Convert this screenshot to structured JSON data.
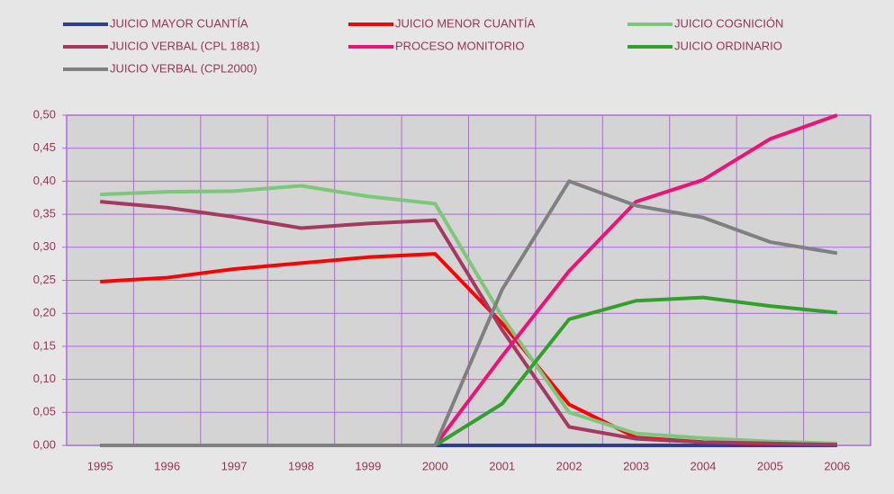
{
  "chart_data": {
    "type": "line",
    "categories": [
      "1995",
      "1996",
      "1997",
      "1998",
      "1999",
      "2000",
      "2001",
      "2002",
      "2003",
      "2004",
      "2005",
      "2006"
    ],
    "series": [
      {
        "name": "JUICIO MAYOR CUANTÍA",
        "color": "#2e3d99",
        "values": [
          0,
          0,
          0,
          0,
          0,
          0,
          0,
          0,
          0,
          0,
          0,
          0
        ]
      },
      {
        "name": "JUICIO MENOR CUANTÍA",
        "color": "#ff0000",
        "values": [
          0.248,
          0.254,
          0.267,
          0.276,
          0.285,
          0.29,
          0.185,
          0.062,
          0.012,
          0.005,
          0.002,
          0.001
        ]
      },
      {
        "name": "JUICIO COGNICIÓN",
        "color": "#7dc77a",
        "values": [
          0.38,
          0.384,
          0.385,
          0.393,
          0.377,
          0.366,
          0.195,
          0.05,
          0.018,
          0.011,
          0.006,
          0.003
        ]
      },
      {
        "name": "JUICIO VERBAL (CPL 1881)",
        "color": "#a5395f",
        "values": [
          0.369,
          0.36,
          0.346,
          0.329,
          0.336,
          0.341,
          0.175,
          0.028,
          0.01,
          0.005,
          0.003,
          0.001
        ]
      },
      {
        "name": "PROCESO MONITORIO",
        "color": "#ee1177",
        "values": [
          0,
          0,
          0,
          0,
          0,
          0,
          0.135,
          0.264,
          0.369,
          0.402,
          0.464,
          0.5
        ]
      },
      {
        "name": "JUICIO ORDINARIO",
        "color": "#33a02c",
        "values": [
          0,
          0,
          0,
          0,
          0,
          0,
          0.063,
          0.191,
          0.219,
          0.224,
          0.211,
          0.201
        ]
      },
      {
        "name": "JUICIO VERBAL (CPL2000)",
        "color": "#808080",
        "values": [
          0,
          0,
          0,
          0,
          0,
          0,
          0.236,
          0.4,
          0.363,
          0.345,
          0.308,
          0.291
        ]
      }
    ],
    "ylim": [
      0,
      0.5
    ],
    "yticks": [
      {
        "value": 0,
        "label": "0,00"
      },
      {
        "value": 0.05,
        "label": "0,05"
      },
      {
        "value": 0.1,
        "label": "0,10"
      },
      {
        "value": 0.15,
        "label": "0,15"
      },
      {
        "value": 0.2,
        "label": "0,20"
      },
      {
        "value": 0.25,
        "label": "0,25"
      },
      {
        "value": 0.3,
        "label": "0,30"
      },
      {
        "value": 0.35,
        "label": "0,35"
      },
      {
        "value": 0.4,
        "label": "0,40"
      },
      {
        "value": 0.45,
        "label": "0,45"
      },
      {
        "value": 0.5,
        "label": "0,50"
      }
    ],
    "grid": true,
    "legend": "top"
  }
}
